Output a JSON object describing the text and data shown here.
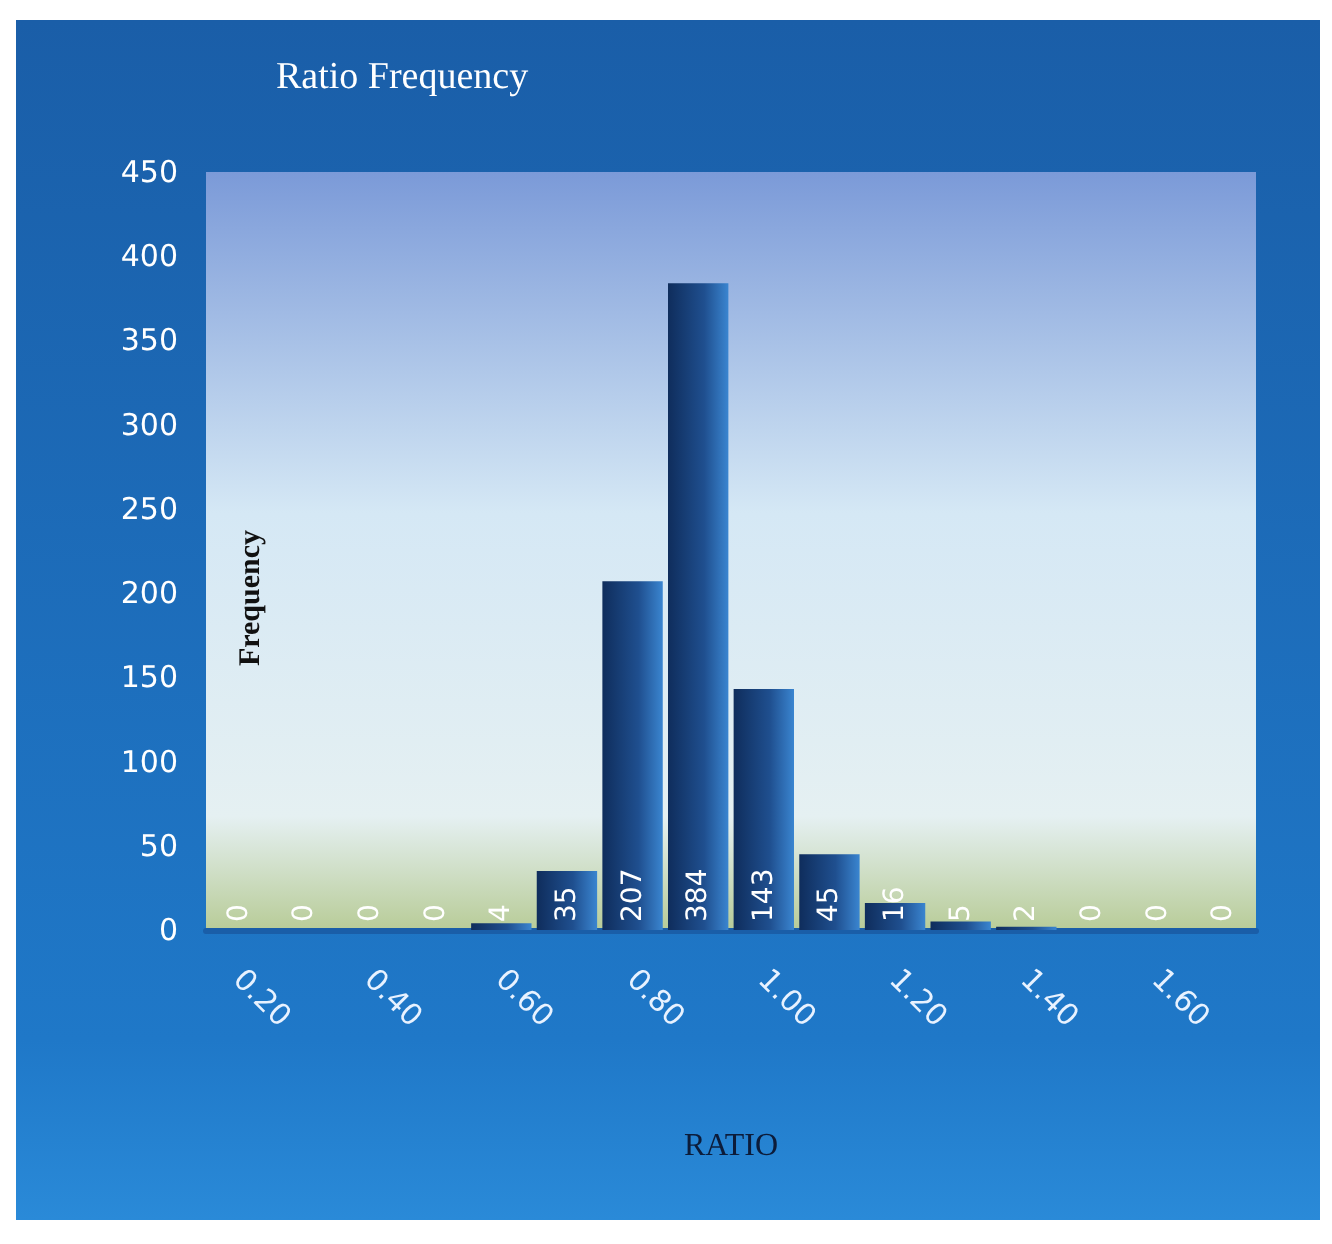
{
  "chart_data": {
    "type": "bar",
    "title": "Ratio Frequency",
    "xlabel": "RATIO",
    "ylabel": "Frequency",
    "categories": [
      "0.20",
      null,
      "0.40",
      null,
      "0.60",
      null,
      "0.80",
      null,
      "1.00",
      null,
      "1.20",
      null,
      "1.40",
      null,
      "1.60",
      null
    ],
    "values": [
      0,
      0,
      0,
      0,
      4,
      35,
      207,
      384,
      143,
      45,
      16,
      5,
      2,
      0,
      0,
      0
    ],
    "color": "#1f4f8f",
    "ylim": [
      0,
      450
    ],
    "yticks": [
      0,
      50,
      100,
      150,
      200,
      250,
      300,
      350,
      400,
      450
    ],
    "grid": false,
    "data_labels": true
  }
}
